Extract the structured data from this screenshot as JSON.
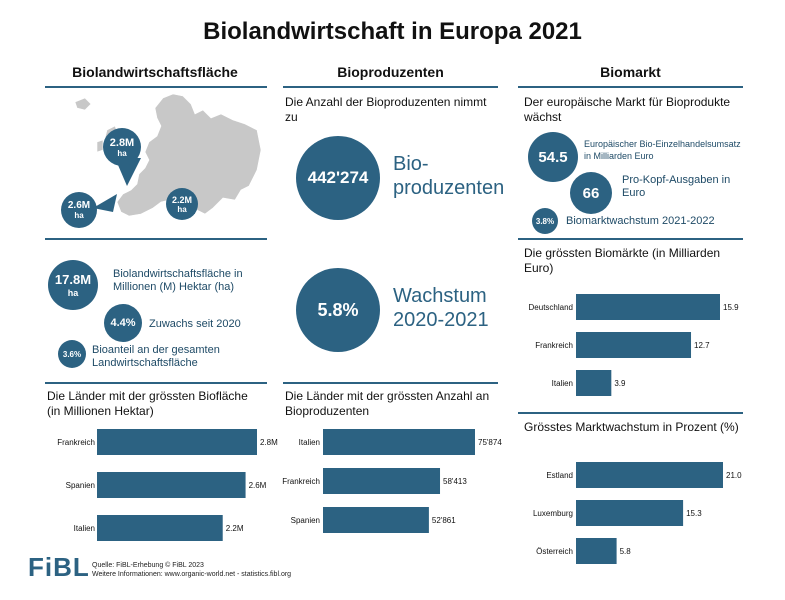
{
  "title": "Biolandwirtschaft in Europa 2021",
  "columns": {
    "left": "Biolandwirtschaftsfläche",
    "mid": "Bioproduzenten",
    "right": "Biomarkt"
  },
  "colors": {
    "accent": "#2c6282",
    "map": "#c8c8c8"
  },
  "map": {
    "bubbles": [
      {
        "value": "2.8M",
        "unit": "ha"
      },
      {
        "value": "2.6M",
        "unit": "ha"
      },
      {
        "value": "2.2M",
        "unit": "ha"
      }
    ]
  },
  "left_stats": {
    "area": {
      "value": "17.8M",
      "unit": "ha",
      "label": "Biolandwirtschaftsfläche in Millionen (M) Hektar (ha)"
    },
    "growth": {
      "value": "4.4%",
      "label": "Zuwachs seit 2020"
    },
    "share": {
      "value": "3.6%",
      "label": "Bioanteil an der gesamten Landwirtschaftsfläche"
    }
  },
  "mid_stats": {
    "intro": "Die Anzahl der Bioproduzenten nimmt zu",
    "producers": {
      "value": "442'274",
      "line1": "Bio-",
      "line2": "produzenten"
    },
    "growth": {
      "value": "5.8%",
      "line1": "Wachstum",
      "line2": "2020-2021"
    }
  },
  "right_stats": {
    "intro": "Der europäische Markt für Bioprodukte wächst",
    "retail": {
      "value": "54.5",
      "label": "Europäischer Bio-Einzelhandelsumsatz in Milliarden Euro"
    },
    "percapita": {
      "value": "66",
      "label": "Pro-Kopf-Ausgaben in Euro"
    },
    "growth": {
      "value": "3.8%",
      "label": "Biomarktwachstum 2021-2022"
    }
  },
  "chart_data": [
    {
      "id": "area",
      "type": "bar",
      "orientation": "horizontal",
      "title": "Die Länder mit der grössten Biofläche (in Millionen Hektar)",
      "categories": [
        "Frankreich",
        "Spanien",
        "Italien"
      ],
      "values": [
        2.8,
        2.6,
        2.2
      ],
      "labels": [
        "2.8M",
        "2.6M",
        "2.2M"
      ],
      "xlim": [
        0,
        2.8
      ]
    },
    {
      "id": "producers",
      "type": "bar",
      "orientation": "horizontal",
      "title": "Die Länder mit der grössten Anzahl an Bioproduzenten",
      "categories": [
        "Italien",
        "Frankreich",
        "Spanien"
      ],
      "values": [
        75874,
        58413,
        52861
      ],
      "labels": [
        "75'874",
        "58'413",
        "52'861"
      ],
      "xlim": [
        0,
        75874
      ]
    },
    {
      "id": "markets",
      "type": "bar",
      "orientation": "horizontal",
      "title": "Die grössten Biomärkte (in Milliarden Euro)",
      "categories": [
        "Deutschland",
        "Frankreich",
        "Italien"
      ],
      "values": [
        15.9,
        12.7,
        3.9
      ],
      "labels": [
        "15.9",
        "12.7",
        "3.9"
      ],
      "xlim": [
        0,
        15.9
      ]
    },
    {
      "id": "marketgrowth",
      "type": "bar",
      "orientation": "horizontal",
      "title": "Grösstes Marktwachstum in Prozent (%)",
      "categories": [
        "Estland",
        "Luxemburg",
        "Österreich"
      ],
      "values": [
        21.0,
        15.3,
        5.8
      ],
      "labels": [
        "21.0",
        "15.3",
        "5.8"
      ],
      "xlim": [
        0,
        21.0
      ]
    }
  ],
  "footer": {
    "logo": "FiBL",
    "source": "Quelle: FiBL-Erhebung © FiBL 2023",
    "more": "Weitere Informationen: www.organic-world.net - statistics.fibl.org"
  }
}
